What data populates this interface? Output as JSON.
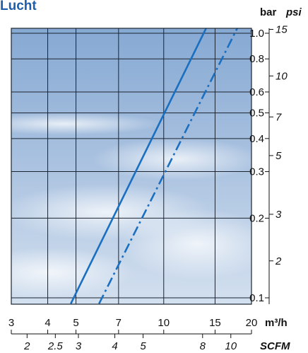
{
  "title": "Lucht",
  "chart_data": {
    "type": "line",
    "title": "Lucht",
    "x_axis": {
      "scale": "log",
      "label": "m³/h",
      "range": [
        3,
        20
      ],
      "ticks": [
        3,
        4,
        5,
        7,
        10,
        15,
        20
      ],
      "tick_labels": [
        "3",
        "4",
        "5",
        "7",
        "10",
        "15",
        "20"
      ]
    },
    "x_axis_secondary": {
      "label": "SCFM",
      "ticks": [
        2,
        2.5,
        3,
        4,
        5,
        8,
        10
      ],
      "tick_labels": [
        "2",
        "2.5",
        "3",
        "4",
        "5",
        "8",
        "10"
      ]
    },
    "y_axis": {
      "scale": "log",
      "label": "bar",
      "range": [
        0.1,
        1.0
      ],
      "ticks": [
        0.1,
        0.2,
        0.3,
        0.4,
        0.5,
        0.6,
        0.8,
        1.0
      ],
      "tick_labels": [
        "0.1",
        "0.2",
        "0.3",
        "0.4",
        "0.5",
        "0.6",
        "0.8",
        "1.0"
      ]
    },
    "y_axis_secondary": {
      "label": "psi",
      "ticks": [
        2,
        3,
        5,
        7,
        10,
        15
      ],
      "tick_labels": [
        "2",
        "3",
        "5",
        "7",
        "10",
        "15"
      ]
    },
    "grid": true,
    "series": [
      {
        "style": "solid",
        "color": "#1a6fc0",
        "x": [
          4.8,
          14.3
        ],
        "y": [
          0.095,
          1.1
        ]
      },
      {
        "style": "dashdot",
        "color": "#1a6fc0",
        "x": [
          6.0,
          18.3
        ],
        "y": [
          0.095,
          1.1
        ]
      }
    ]
  },
  "colors": {
    "title": "#1f5ea8",
    "line": "#1a6fc0",
    "grid": "#1c2430",
    "sky_top": "#86a9d3",
    "sky_bottom": "#cfdcec"
  }
}
